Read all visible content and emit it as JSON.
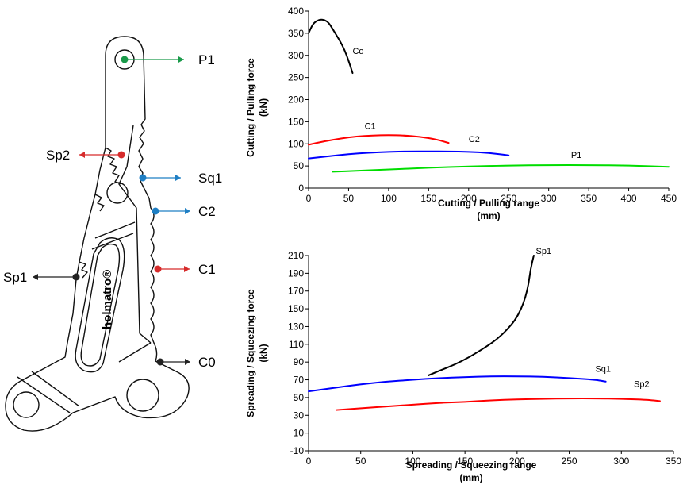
{
  "tool_diagram": {
    "brand": "holmatro®",
    "callouts": [
      {
        "id": "P1",
        "label": "P1",
        "color": "#1a9a4a"
      },
      {
        "id": "Sp2",
        "label": "Sp2",
        "color": "#d62b2b"
      },
      {
        "id": "Sq1",
        "label": "Sq1",
        "color": "#1f7fc4"
      },
      {
        "id": "C2",
        "label": "C2",
        "color": "#1f7fc4"
      },
      {
        "id": "Sp1",
        "label": "Sp1",
        "color": "#222222"
      },
      {
        "id": "C1",
        "label": "C1",
        "color": "#d62b2b"
      },
      {
        "id": "C0",
        "label": "C0",
        "color": "#222222"
      }
    ]
  },
  "chart_data": [
    {
      "type": "line",
      "title": "",
      "xlabel": [
        "Cutting / Pulling range",
        "(mm)"
      ],
      "ylabel": [
        "Cutting / Pulling force",
        "(kN)"
      ],
      "xlim": [
        0,
        450
      ],
      "ylim": [
        0,
        400
      ],
      "xticks": [
        0,
        50,
        100,
        150,
        200,
        250,
        300,
        350,
        400,
        450
      ],
      "yticks": [
        0,
        50,
        100,
        150,
        200,
        250,
        300,
        350,
        400
      ],
      "grid": false,
      "series": [
        {
          "name": "Co",
          "color": "#000000",
          "x": [
            0,
            5,
            10,
            15,
            20,
            25,
            30,
            35,
            40,
            45,
            50,
            55
          ],
          "y": [
            350,
            370,
            378,
            381,
            380,
            374,
            360,
            345,
            330,
            312,
            288,
            260
          ]
        },
        {
          "name": "C1",
          "color": "#ff0000",
          "x": [
            0,
            20,
            40,
            60,
            80,
            100,
            120,
            140,
            160,
            175
          ],
          "y": [
            98,
            106,
            112,
            117,
            119,
            120,
            119,
            116,
            110,
            102
          ]
        },
        {
          "name": "C2",
          "color": "#0000ff",
          "x": [
            0,
            25,
            50,
            75,
            100,
            125,
            150,
            175,
            200,
            225,
            250
          ],
          "y": [
            67,
            72,
            77,
            80,
            82,
            83,
            83,
            83,
            82,
            80,
            74
          ]
        },
        {
          "name": "P1",
          "color": "#00dd00",
          "x": [
            30,
            60,
            100,
            150,
            200,
            250,
            300,
            350,
            400,
            450
          ],
          "y": [
            37,
            39,
            42,
            46,
            49,
            51,
            52,
            52,
            51,
            48
          ]
        }
      ],
      "series_label_points": [
        {
          "name": "Co",
          "x": 55,
          "y": 303
        },
        {
          "name": "C1",
          "x": 70,
          "y": 134
        },
        {
          "name": "C2",
          "x": 200,
          "y": 104
        },
        {
          "name": "P1",
          "x": 328,
          "y": 68
        }
      ]
    },
    {
      "type": "line",
      "title": "",
      "xlabel": [
        "Spreading / Squeezing range",
        "(mm)"
      ],
      "ylabel": [
        "Spreading / Squeezing force",
        "(kN)"
      ],
      "xlim": [
        0,
        350
      ],
      "ylim": [
        -10,
        210
      ],
      "xticks": [
        0,
        50,
        100,
        150,
        200,
        250,
        300,
        350
      ],
      "yticks": [
        -10,
        10,
        30,
        50,
        70,
        90,
        110,
        130,
        150,
        170,
        190,
        210
      ],
      "grid": false,
      "series": [
        {
          "name": "Sp1",
          "color": "#000000",
          "x": [
            115,
            125,
            140,
            155,
            170,
            180,
            190,
            198,
            204,
            208,
            211,
            213,
            216
          ],
          "y": [
            75,
            80,
            87,
            96,
            107,
            115,
            126,
            137,
            150,
            163,
            178,
            195,
            210
          ]
        },
        {
          "name": "Sq1",
          "color": "#0000ff",
          "x": [
            0,
            25,
            50,
            75,
            100,
            125,
            150,
            175,
            200,
            225,
            250,
            275,
            285
          ],
          "y": [
            57,
            61,
            65,
            68,
            70,
            72,
            73,
            74,
            74,
            73.5,
            72,
            70,
            68
          ]
        },
        {
          "name": "Sp2",
          "color": "#ff0000",
          "x": [
            27,
            50,
            75,
            100,
            125,
            150,
            175,
            200,
            225,
            250,
            275,
            300,
            325,
            337
          ],
          "y": [
            36,
            38,
            40,
            42,
            44,
            45,
            47,
            48,
            48.5,
            49,
            49,
            48.5,
            47.5,
            46
          ]
        }
      ],
      "series_label_points": [
        {
          "name": "Sp1",
          "x": 218,
          "y": 212
        },
        {
          "name": "Sq1",
          "x": 275,
          "y": 79
        },
        {
          "name": "Sp2",
          "x": 312,
          "y": 62
        }
      ]
    }
  ]
}
